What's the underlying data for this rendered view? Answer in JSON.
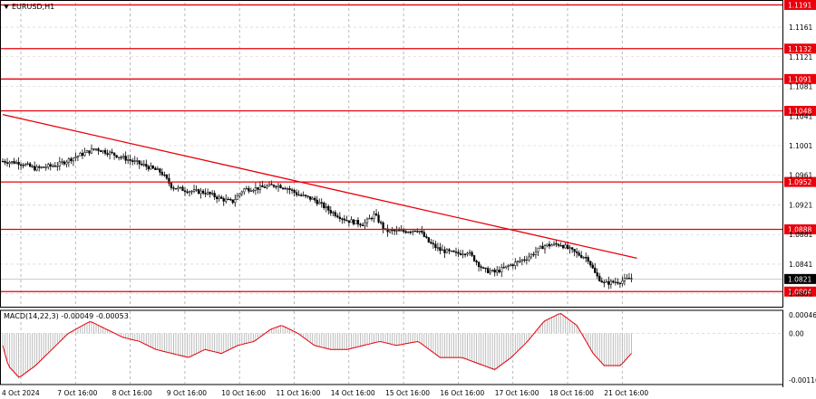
{
  "chart_data": {
    "type": "candlestick",
    "symbol_label": "EURUSD,H1",
    "price_axis": {
      "ylim": [
        1.0786,
        1.1194
      ],
      "ticks": [
        "1.1161",
        "1.1121",
        "1.1081",
        "1.1041",
        "1.1001",
        "1.0961",
        "1.0921",
        "1.0881",
        "1.0841",
        "1.0801"
      ],
      "grid": true
    },
    "x_axis": {
      "ticks": [
        "4 Oct 2024",
        "7 Oct 16:00",
        "8 Oct 16:00",
        "9 Oct 16:00",
        "10 Oct 16:00",
        "11 Oct 16:00",
        "14 Oct 16:00",
        "15 Oct 16:00",
        "16 Oct 16:00",
        "17 Oct 16:00",
        "18 Oct 16:00",
        "21 Oct 16:00"
      ],
      "grid": true
    },
    "horizontal_levels": [
      {
        "value": 1.1191,
        "label": "1.1191"
      },
      {
        "value": 1.1132,
        "label": "1.1132"
      },
      {
        "value": 1.1091,
        "label": "1.1091"
      },
      {
        "value": 1.1048,
        "label": "1.1048"
      },
      {
        "value": 1.0952,
        "label": "1.0952"
      },
      {
        "value": 1.0888,
        "label": "1.0888"
      },
      {
        "value": 1.0804,
        "label": "1.0804"
      }
    ],
    "current_price": {
      "value": 1.0821,
      "label": "1.0821"
    },
    "trendline": {
      "start": [
        0,
        1.1043
      ],
      "end": [
        11.6,
        1.0849
      ]
    },
    "price_path": [
      [
        0.0,
        1.098
      ],
      [
        0.3,
        1.0978
      ],
      [
        0.6,
        1.097
      ],
      [
        1.0,
        1.0975
      ],
      [
        1.3,
        1.0985
      ],
      [
        1.7,
        1.0997
      ],
      [
        2.0,
        1.099
      ],
      [
        2.3,
        1.0982
      ],
      [
        2.6,
        1.0974
      ],
      [
        2.9,
        1.0965
      ],
      [
        3.1,
        1.0945
      ],
      [
        3.4,
        1.094
      ],
      [
        3.7,
        1.0938
      ],
      [
        4.0,
        1.0929
      ],
      [
        4.2,
        1.0925
      ],
      [
        4.4,
        1.0942
      ],
      [
        4.7,
        1.0944
      ],
      [
        5.0,
        1.0948
      ],
      [
        5.2,
        1.0944
      ],
      [
        5.4,
        1.0935
      ],
      [
        5.7,
        1.0928
      ],
      [
        6.0,
        1.0912
      ],
      [
        6.3,
        1.09
      ],
      [
        6.6,
        1.0895
      ],
      [
        6.8,
        1.0908
      ],
      [
        7.0,
        1.0886
      ],
      [
        7.3,
        1.0885
      ],
      [
        7.6,
        1.0888
      ],
      [
        7.8,
        1.087
      ],
      [
        8.0,
        1.086
      ],
      [
        8.3,
        1.0855
      ],
      [
        8.5,
        1.0858
      ],
      [
        8.8,
        1.0833
      ],
      [
        9.0,
        1.083
      ],
      [
        9.3,
        1.084
      ],
      [
        9.6,
        1.085
      ],
      [
        9.9,
        1.0866
      ],
      [
        10.2,
        1.0868
      ],
      [
        10.5,
        1.0855
      ],
      [
        10.7,
        1.0849
      ],
      [
        10.85,
        1.0826
      ],
      [
        11.0,
        1.0815
      ],
      [
        11.3,
        1.0818
      ],
      [
        11.5,
        1.0822
      ]
    ],
    "macd": {
      "label": "MACD(14,22,3) -0.00049 -0.00053",
      "params": [
        14,
        22,
        3
      ],
      "main": -0.00049,
      "signal": -0.00053,
      "ylim": [
        -0.00116,
        0.00046
      ],
      "ticks": [
        "0.00046",
        "0.00",
        "-0.00116"
      ],
      "signal_path": [
        [
          0.0,
          -0.0003
        ],
        [
          0.1,
          -0.0008
        ],
        [
          0.3,
          -0.0011
        ],
        [
          0.6,
          -0.0008
        ],
        [
          0.9,
          -0.0004
        ],
        [
          1.2,
          0.0
        ],
        [
          1.6,
          0.0003
        ],
        [
          1.9,
          0.0001
        ],
        [
          2.2,
          -0.0001
        ],
        [
          2.5,
          -0.0002
        ],
        [
          2.8,
          -0.0004
        ],
        [
          3.1,
          -0.0005
        ],
        [
          3.4,
          -0.0006
        ],
        [
          3.7,
          -0.0004
        ],
        [
          4.0,
          -0.0005
        ],
        [
          4.3,
          -0.0003
        ],
        [
          4.6,
          -0.0002
        ],
        [
          4.9,
          0.0001
        ],
        [
          5.1,
          0.0002
        ],
        [
          5.4,
          0.0
        ],
        [
          5.7,
          -0.0003
        ],
        [
          6.0,
          -0.0004
        ],
        [
          6.3,
          -0.0004
        ],
        [
          6.6,
          -0.0003
        ],
        [
          6.9,
          -0.0002
        ],
        [
          7.2,
          -0.0003
        ],
        [
          7.6,
          -0.0002
        ],
        [
          8.0,
          -0.0006
        ],
        [
          8.4,
          -0.0006
        ],
        [
          8.8,
          -0.0008
        ],
        [
          9.0,
          -0.0009
        ],
        [
          9.3,
          -0.0006
        ],
        [
          9.6,
          -0.0002
        ],
        [
          9.9,
          0.0003
        ],
        [
          10.2,
          0.0005
        ],
        [
          10.5,
          0.0002
        ],
        [
          10.8,
          -0.0005
        ],
        [
          11.0,
          -0.0008
        ],
        [
          11.3,
          -0.0008
        ],
        [
          11.5,
          -0.0005
        ]
      ]
    }
  }
}
